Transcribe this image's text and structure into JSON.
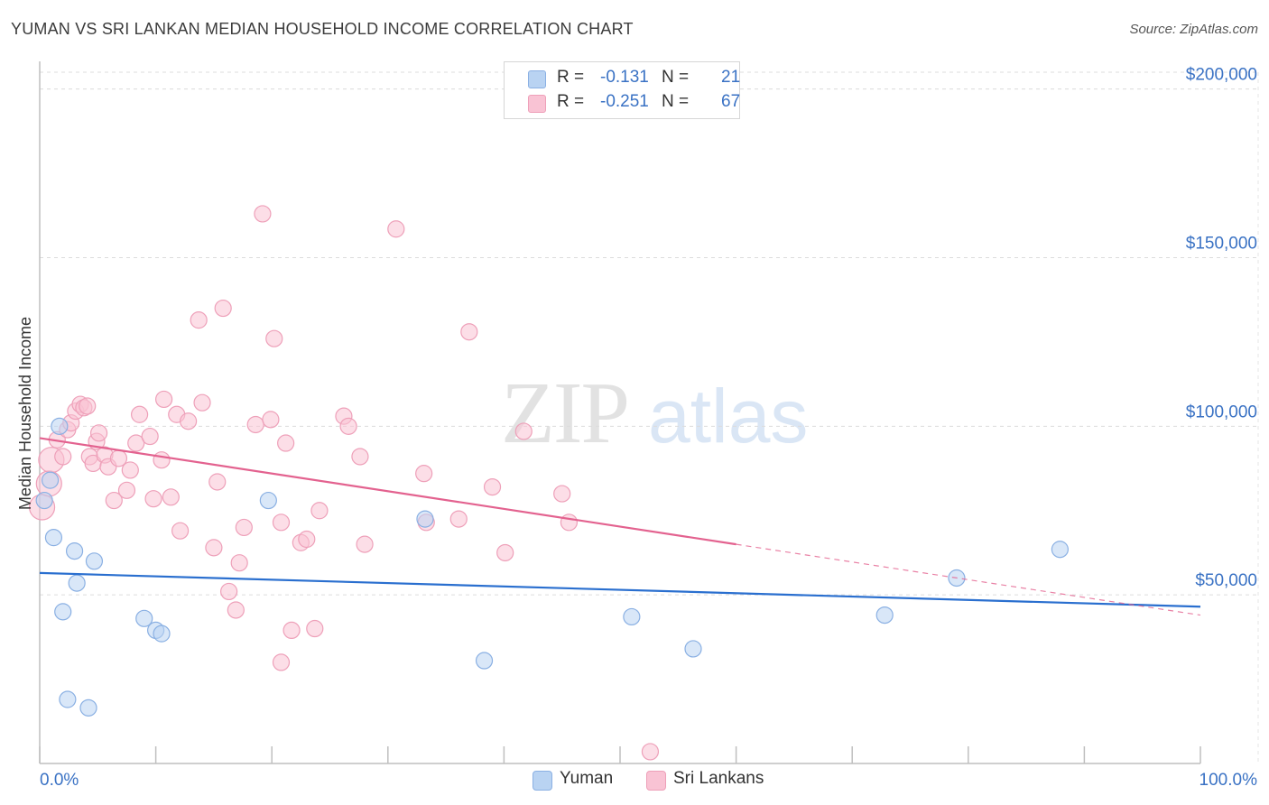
{
  "header": {
    "title": "YUMAN VS SRI LANKAN MEDIAN HOUSEHOLD INCOME CORRELATION CHART",
    "source": "Source: ZipAtlas.com"
  },
  "watermark": {
    "zip": "ZIP",
    "atlas": "atlas"
  },
  "legend": {
    "rows": [
      {
        "r_label": "R =",
        "r_value": "-0.131",
        "n_label": "N =",
        "n_value": "21"
      },
      {
        "r_label": "R =",
        "r_value": "-0.251",
        "n_label": "N =",
        "n_value": "67"
      }
    ]
  },
  "chart_data": {
    "type": "scatter",
    "ylabel": "Median Household Income",
    "x_tick_labels": [
      "0.0%",
      "100.0%"
    ],
    "y_tick_labels": [
      "$50,000",
      "$100,000",
      "$150,000",
      "$200,000"
    ],
    "y_ticks": [
      50000,
      100000,
      150000,
      200000
    ],
    "xlim": [
      0,
      100
    ],
    "ylim": [
      0,
      205000
    ],
    "grid": true,
    "legend_position": "bottom",
    "colors": {
      "Yuman": {
        "fill": "#b9d3f2",
        "stroke": "#8ab0e3",
        "line": "#2a6fcf"
      },
      "Sri Lankans": {
        "fill": "#f9c3d4",
        "stroke": "#eea0b9",
        "line": "#e3628f"
      }
    },
    "series": [
      {
        "name": "Yuman",
        "trend": {
          "x0": 0,
          "y0": 56500,
          "x1": 100,
          "y1": 46500,
          "dash_from_x": null
        },
        "points": [
          [
            0.4,
            78000
          ],
          [
            0.9,
            84000
          ],
          [
            1.2,
            67000
          ],
          [
            1.7,
            100000
          ],
          [
            2.0,
            45000
          ],
          [
            2.4,
            19000
          ],
          [
            3.0,
            63000
          ],
          [
            3.2,
            53500
          ],
          [
            4.2,
            16500
          ],
          [
            4.7,
            60000
          ],
          [
            9.0,
            43000
          ],
          [
            10.0,
            39500
          ],
          [
            10.5,
            38500
          ],
          [
            19.7,
            78000
          ],
          [
            33.2,
            72500
          ],
          [
            38.3,
            30500
          ],
          [
            51.0,
            43500
          ],
          [
            56.3,
            34000
          ],
          [
            72.8,
            44000
          ],
          [
            79.0,
            55000
          ],
          [
            87.9,
            63500
          ]
        ]
      },
      {
        "name": "Sri Lankans",
        "trend": {
          "x0": 0,
          "y0": 96500,
          "x1": 100,
          "y1": 44000,
          "dash_from_x": 60
        },
        "points": [
          [
            0.2,
            76000
          ],
          [
            0.8,
            83000
          ],
          [
            1.0,
            90000
          ],
          [
            1.5,
            96000
          ],
          [
            2.0,
            91000
          ],
          [
            2.4,
            99000
          ],
          [
            2.7,
            101000
          ],
          [
            3.1,
            104500
          ],
          [
            3.5,
            106500
          ],
          [
            3.8,
            105500
          ],
          [
            4.1,
            106000
          ],
          [
            4.3,
            91000
          ],
          [
            4.6,
            89000
          ],
          [
            4.9,
            95500
          ],
          [
            5.1,
            98000
          ],
          [
            5.6,
            91500
          ],
          [
            5.9,
            88000
          ],
          [
            6.4,
            78000
          ],
          [
            6.8,
            90500
          ],
          [
            7.5,
            81000
          ],
          [
            7.8,
            87000
          ],
          [
            8.3,
            95000
          ],
          [
            8.6,
            103500
          ],
          [
            9.5,
            97000
          ],
          [
            9.8,
            78500
          ],
          [
            10.5,
            90000
          ],
          [
            10.7,
            108000
          ],
          [
            11.3,
            79000
          ],
          [
            11.8,
            103500
          ],
          [
            12.1,
            69000
          ],
          [
            12.8,
            101500
          ],
          [
            13.7,
            131500
          ],
          [
            14.0,
            107000
          ],
          [
            15.0,
            64000
          ],
          [
            15.8,
            135000
          ],
          [
            15.3,
            83500
          ],
          [
            16.3,
            51000
          ],
          [
            16.9,
            45500
          ],
          [
            17.2,
            59500
          ],
          [
            17.6,
            70000
          ],
          [
            18.6,
            100500
          ],
          [
            19.2,
            163000
          ],
          [
            19.9,
            102000
          ],
          [
            20.2,
            126000
          ],
          [
            20.8,
            71500
          ],
          [
            21.2,
            95000
          ],
          [
            21.7,
            39500
          ],
          [
            20.8,
            30000
          ],
          [
            22.5,
            65500
          ],
          [
            23.0,
            66500
          ],
          [
            23.7,
            40000
          ],
          [
            24.1,
            75000
          ],
          [
            26.2,
            103000
          ],
          [
            26.6,
            100000
          ],
          [
            27.6,
            91000
          ],
          [
            28.0,
            65000
          ],
          [
            30.7,
            158500
          ],
          [
            33.1,
            86000
          ],
          [
            33.3,
            71500
          ],
          [
            36.1,
            72500
          ],
          [
            37.0,
            128000
          ],
          [
            39.0,
            82000
          ],
          [
            40.1,
            62500
          ],
          [
            41.7,
            98500
          ],
          [
            45.0,
            80000
          ],
          [
            45.6,
            71500
          ],
          [
            52.6,
            3500
          ]
        ]
      }
    ]
  }
}
